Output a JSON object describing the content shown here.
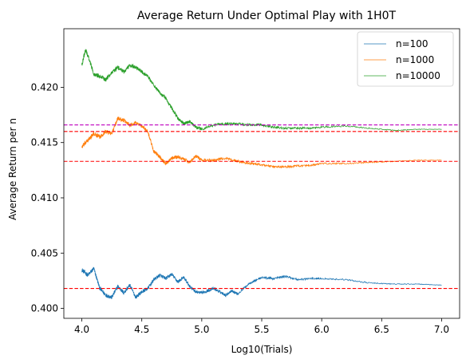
{
  "chart_data": {
    "type": "line",
    "title": "Average Return Under Optimal Play with 1H0T",
    "xlabel": "Log10(Trials)",
    "ylabel": "Average Return per n",
    "xlim": [
      3.85,
      7.15
    ],
    "ylim": [
      0.3991,
      0.4253
    ],
    "xticks": [
      4.0,
      4.5,
      5.0,
      5.5,
      6.0,
      6.5,
      7.0
    ],
    "xtick_labels": [
      "4.0",
      "4.5",
      "5.0",
      "5.5",
      "6.0",
      "6.5",
      "7.0"
    ],
    "yticks": [
      0.4,
      0.405,
      0.41,
      0.415,
      0.42
    ],
    "ytick_labels": [
      "0.400",
      "0.405",
      "0.410",
      "0.415",
      "0.420"
    ],
    "grid": false,
    "legend_position": "top-right",
    "series": [
      {
        "name": "n=100",
        "color": "#1f77b4",
        "x": [
          4.0,
          4.05,
          4.1,
          4.15,
          4.2,
          4.25,
          4.3,
          4.35,
          4.4,
          4.45,
          4.5,
          4.55,
          4.6,
          4.65,
          4.7,
          4.75,
          4.8,
          4.85,
          4.9,
          4.95,
          5.0,
          5.05,
          5.1,
          5.15,
          5.2,
          5.25,
          5.3,
          5.4,
          5.5,
          5.6,
          5.7,
          5.8,
          5.9,
          6.0,
          6.2,
          6.4,
          6.6,
          6.8,
          7.0
        ],
        "y": [
          0.4035,
          0.403,
          0.4036,
          0.4018,
          0.4012,
          0.401,
          0.402,
          0.4014,
          0.4021,
          0.401,
          0.4015,
          0.4018,
          0.4026,
          0.403,
          0.4027,
          0.4031,
          0.4024,
          0.4028,
          0.402,
          0.4015,
          0.4014,
          0.4016,
          0.4018,
          0.4015,
          0.4012,
          0.4016,
          0.4013,
          0.4023,
          0.4028,
          0.4027,
          0.4029,
          0.4026,
          0.4027,
          0.4027,
          0.4026,
          0.4023,
          0.4022,
          0.4022,
          0.4021
        ]
      },
      {
        "name": "n=1000",
        "color": "#ff7f0e",
        "x": [
          4.0,
          4.05,
          4.1,
          4.15,
          4.2,
          4.25,
          4.3,
          4.35,
          4.4,
          4.45,
          4.5,
          4.55,
          4.6,
          4.65,
          4.7,
          4.75,
          4.8,
          4.85,
          4.9,
          4.95,
          5.0,
          5.1,
          5.2,
          5.3,
          5.4,
          5.5,
          5.6,
          5.7,
          5.8,
          5.9,
          6.0,
          6.2,
          6.4,
          6.6,
          6.8,
          7.0
        ],
        "y": [
          0.4146,
          0.4152,
          0.4158,
          0.4155,
          0.416,
          0.4158,
          0.4172,
          0.417,
          0.4166,
          0.4168,
          0.4165,
          0.416,
          0.4142,
          0.4137,
          0.4131,
          0.4136,
          0.4137,
          0.4135,
          0.4132,
          0.4138,
          0.4134,
          0.4134,
          0.4136,
          0.4133,
          0.4131,
          0.413,
          0.4128,
          0.4128,
          0.4129,
          0.4129,
          0.4131,
          0.4131,
          0.4132,
          0.4133,
          0.4134,
          0.4134
        ]
      },
      {
        "name": "n=10000",
        "color": "#2ca02c",
        "x": [
          4.0,
          4.03,
          4.06,
          4.1,
          4.15,
          4.2,
          4.25,
          4.3,
          4.35,
          4.4,
          4.45,
          4.5,
          4.55,
          4.6,
          4.65,
          4.7,
          4.75,
          4.8,
          4.85,
          4.9,
          4.95,
          5.0,
          5.1,
          5.2,
          5.3,
          5.4,
          5.5,
          5.6,
          5.7,
          5.8,
          5.9,
          6.0,
          6.2,
          6.4,
          6.6,
          6.8,
          7.0
        ],
        "y": [
          0.422,
          0.4234,
          0.4226,
          0.4212,
          0.421,
          0.4207,
          0.4213,
          0.4218,
          0.4214,
          0.422,
          0.4218,
          0.4214,
          0.421,
          0.4202,
          0.4195,
          0.419,
          0.4181,
          0.4172,
          0.4167,
          0.4169,
          0.4164,
          0.4162,
          0.4166,
          0.4167,
          0.4167,
          0.4166,
          0.4166,
          0.4164,
          0.4163,
          0.4163,
          0.4163,
          0.4164,
          0.4165,
          0.4163,
          0.4161,
          0.4162,
          0.4162
        ]
      }
    ],
    "reference_lines": [
      {
        "y": 0.4166,
        "color": "#bf00bf",
        "style": "dashed"
      },
      {
        "y": 0.416,
        "color": "#ff0000",
        "style": "dashed"
      },
      {
        "y": 0.4133,
        "color": "#ff0000",
        "style": "dashed"
      },
      {
        "y": 0.4018,
        "color": "#ff0000",
        "style": "dashed"
      }
    ]
  }
}
